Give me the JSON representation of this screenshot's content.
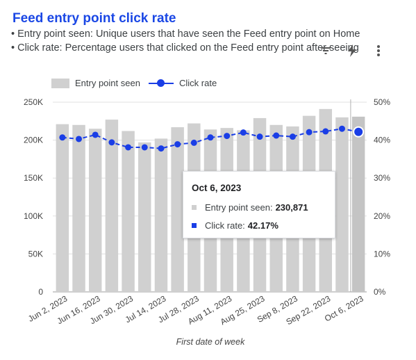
{
  "header": {
    "title": "Feed entry point click rate",
    "line1": "• Entry point seen: Unique users that have seen the Feed entry point on Home",
    "line2": "• Click rate: Percentage users that clicked on the Feed entry point after seeing"
  },
  "toolbar": {
    "icons": [
      "filter-icon",
      "lightning-icon",
      "more-vert-icon"
    ]
  },
  "legend": {
    "bar_label": "Entry point seen",
    "line_label": "Click rate"
  },
  "colors": {
    "title": "#1a47e5",
    "bar": "#d0d0d0",
    "bar_highlight": "#c4c4c4",
    "line": "#1a3ee6",
    "grid": "#e0e0e0"
  },
  "tooltip": {
    "date": "Oct 6, 2023",
    "bar_label": "Entry point seen:",
    "bar_value": "230,871",
    "line_label": "Click rate:",
    "line_value": "42.17%"
  },
  "chart_data": {
    "type": "bar",
    "title": "Feed entry point click rate",
    "xlabel": "First date of week",
    "ylabel": "",
    "ylabel_right": "",
    "grid": true,
    "legend_position": "top-left",
    "highlighted_category": "Oct 6, 2023",
    "categories": [
      "Jun 2, 2023",
      "Jun 9, 2023",
      "Jun 16, 2023",
      "Jun 23, 2023",
      "Jun 30, 2023",
      "Jul 7, 2023",
      "Jul 14, 2023",
      "Jul 21, 2023",
      "Jul 28, 2023",
      "Aug 4, 2023",
      "Aug 11, 2023",
      "Aug 18, 2023",
      "Aug 25, 2023",
      "Sep 1, 2023",
      "Sep 8, 2023",
      "Sep 15, 2023",
      "Sep 22, 2023",
      "Sep 29, 2023",
      "Oct 6, 2023"
    ],
    "x_tick_labels": [
      "Jun 2, 2023",
      "Jun 16, 2023",
      "Jun 30, 2023",
      "Jul 14, 2023",
      "Jul 28, 2023",
      "Aug 11, 2023",
      "Aug 25, 2023",
      "Sep 8, 2023",
      "Sep 22, 2023",
      "Oct 6, 2023"
    ],
    "y_ticks_left": [
      "0",
      "50K",
      "100K",
      "150K",
      "200K",
      "250K"
    ],
    "y_ticks_right": [
      "0%",
      "10%",
      "20%",
      "30%",
      "40%",
      "50%"
    ],
    "ylim_left": [
      0,
      250000
    ],
    "ylim_right": [
      0,
      50
    ],
    "series": [
      {
        "name": "Entry point seen",
        "type": "bar",
        "axis": "left",
        "values": [
          221000,
          220000,
          215000,
          227000,
          212000,
          197000,
          202000,
          217000,
          222000,
          214000,
          216000,
          213000,
          229000,
          220000,
          218000,
          232000,
          241000,
          230000,
          230871
        ]
      },
      {
        "name": "Click rate",
        "type": "line",
        "axis": "right",
        "values": [
          40.7,
          40.3,
          41.4,
          39.4,
          38.1,
          38.1,
          37.8,
          38.9,
          39.3,
          40.7,
          41.1,
          42.0,
          40.9,
          41.2,
          40.9,
          42.1,
          42.3,
          43.0,
          42.17
        ]
      }
    ]
  }
}
